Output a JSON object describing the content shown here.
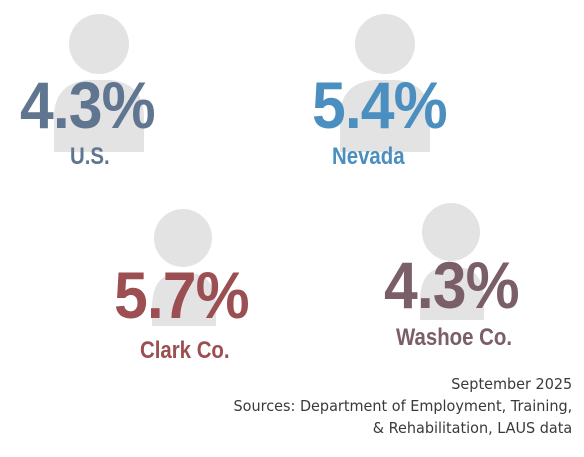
{
  "chart_data": {
    "type": "table",
    "items": [
      {
        "value": "4.3%",
        "label": "U.S.",
        "color": "#5f7590"
      },
      {
        "value": "5.4%",
        "label": "Nevada",
        "color": "#4a8fbf"
      },
      {
        "value": "5.7%",
        "label": "Clark Co.",
        "color": "#9b4f52"
      },
      {
        "value": "4.3%",
        "label": "Washoe Co.",
        "color": "#7a5e68"
      }
    ]
  },
  "icon": {
    "name": "person-icon",
    "color": "#e3e3e3"
  },
  "footer": {
    "date": "September 2025",
    "sources_line1": "Sources: Department of Employment, Training,",
    "sources_line2": "& Rehabilitation, LAUS data"
  }
}
